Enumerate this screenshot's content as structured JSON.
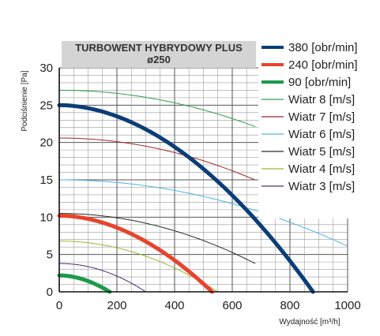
{
  "chart_data": {
    "type": "line",
    "title": "TURBOWENT HYBRYDOWY PLUS",
    "subtitle": "ø250",
    "xlabel": "Wydajność [m³/h]",
    "ylabel": "Podciśnienie [Pa]",
    "xlim": [
      0,
      1000
    ],
    "ylim": [
      0,
      30
    ],
    "xticks": [
      "0",
      "200",
      "400",
      "600",
      "800",
      "1000"
    ],
    "yticks": [
      "0",
      "5",
      "10",
      "15",
      "20",
      "25",
      "30"
    ],
    "grid": true,
    "legend_position": "right",
    "series": [
      {
        "name": "380 [obr/min]",
        "color": "#0b3d78",
        "width": 5,
        "p0": 25.0,
        "q0": 880,
        "k": 1.9,
        "xmax": 880
      },
      {
        "name": "240 [obr/min]",
        "color": "#e8432d",
        "width": 5,
        "p0": 10.2,
        "q0": 530,
        "k": 1.9,
        "xmax": 530
      },
      {
        "name": "90 [obr/min]",
        "color": "#1a9a4a",
        "width": 5,
        "p0": 2.2,
        "q0": 175,
        "k": 1.9,
        "xmax": 175
      },
      {
        "name": "Wiatr  8 [m/s]",
        "color": "#2e9e4f",
        "width": 1,
        "p0": 27.0,
        "q0": 1600,
        "k": 2.0,
        "xmax": 680
      },
      {
        "name": "Wiatr  7 [m/s]",
        "color": "#9b2a2a",
        "width": 1,
        "p0": 20.6,
        "q0": 1300,
        "k": 2.0,
        "xmax": 680
      },
      {
        "name": "Wiatr  6 [m/s]",
        "color": "#4fb3e6",
        "width": 1,
        "p0": 15.0,
        "q0": 1300,
        "k": 2.0,
        "xmax": 1000
      },
      {
        "name": "Wiatr  5 [m/s]",
        "color": "#2a2a2a",
        "width": 1,
        "p0": 10.5,
        "q0": 850,
        "k": 2.0,
        "xmax": 680
      },
      {
        "name": "Wiatr  4 [m/s]",
        "color": "#9ab82e",
        "width": 1,
        "p0": 6.8,
        "q0": 550,
        "k": 2.0,
        "xmax": 550
      },
      {
        "name": "Wiatr  3 [m/s]",
        "color": "#4a2a7a",
        "width": 1,
        "p0": 3.8,
        "q0": 300,
        "k": 2.0,
        "xmax": 300
      }
    ]
  }
}
